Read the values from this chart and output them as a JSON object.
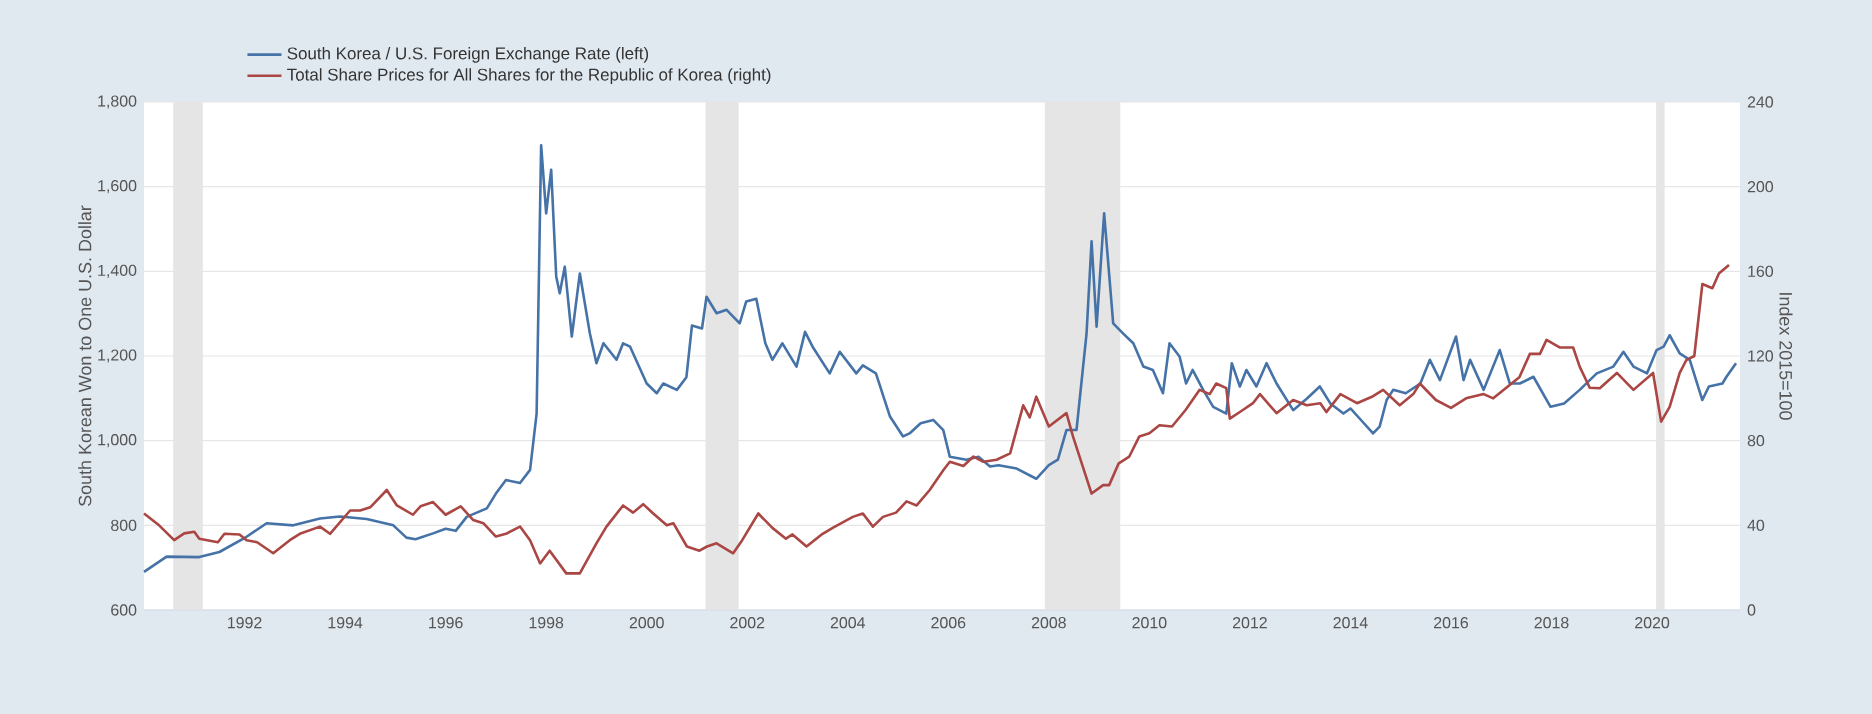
{
  "chart_data": {
    "type": "line",
    "ylabel": "South Korean Won to One U.S. Dollar",
    "y2label": "Index 2015=100",
    "xlim": [
      1990,
      2021.75
    ],
    "xticks": [
      1992,
      1994,
      1996,
      1998,
      2000,
      2002,
      2004,
      2006,
      2008,
      2010,
      2012,
      2014,
      2016,
      2018,
      2020
    ],
    "ylim": [
      600,
      1800
    ],
    "yticks": [
      600,
      800,
      {
        "value": 1000,
        "label": "1,000"
      },
      {
        "value": 1200,
        "label": "1,200"
      },
      {
        "value": 1400,
        "label": "1,400"
      },
      {
        "value": 1600,
        "label": "1,600"
      },
      {
        "value": 1800,
        "label": "1,800"
      }
    ],
    "y2lim": [
      0,
      240
    ],
    "y2ticks": [
      0,
      40,
      80,
      120,
      160,
      200,
      240
    ],
    "grid": "y",
    "legend": "top left",
    "bands": [
      {
        "axis": "x",
        "from": 1990.58,
        "to": 1991.17,
        "color": "#e5e5e5"
      },
      {
        "axis": "x",
        "from": 2001.17,
        "to": 2001.83,
        "color": "#e5e5e5"
      },
      {
        "axis": "x",
        "from": 2007.92,
        "to": 2009.42,
        "color": "#e5e5e5"
      },
      {
        "axis": "x",
        "from": 2020.08,
        "to": 2020.25,
        "color": "#e5e5e5"
      }
    ],
    "series": [
      {
        "name": "South Korea / U.S. Foreign Exchange Rate (left)",
        "color": "#4572a7",
        "x": [
          1990.0,
          1990.45,
          1991.1,
          1991.5,
          1992.04,
          1992.44,
          1992.97,
          1993.5,
          1993.9,
          1994.43,
          1994.96,
          1995.22,
          1995.4,
          1995.75,
          1996.0,
          1996.2,
          1996.42,
          1996.82,
          1997.0,
          1997.2,
          1997.48,
          1997.68,
          1997.81,
          1997.9,
          1998.0,
          1998.1,
          1998.2,
          1998.27,
          1998.37,
          1998.51,
          1998.67,
          1998.87,
          1999.0,
          1999.14,
          1999.4,
          1999.53,
          1999.67,
          2000.0,
          2000.2,
          2000.33,
          2000.6,
          2000.79,
          2000.9,
          2001.1,
          2001.19,
          2001.39,
          2001.59,
          2001.85,
          2001.98,
          2002.18,
          2002.36,
          2002.5,
          2002.7,
          2002.98,
          2003.15,
          2003.3,
          2003.64,
          2003.84,
          2004.17,
          2004.3,
          2004.56,
          2004.84,
          2005.1,
          2005.24,
          2005.45,
          2005.7,
          2005.9,
          2006.03,
          2006.36,
          2006.6,
          2006.83,
          2007.0,
          2007.36,
          2007.75,
          2008.0,
          2008.18,
          2008.35,
          2008.55,
          2008.75,
          2008.85,
          2008.95,
          2009.1,
          2009.28,
          2009.48,
          2009.68,
          2009.88,
          2010.07,
          2010.27,
          2010.4,
          2010.6,
          2010.73,
          2010.86,
          2011.07,
          2011.27,
          2011.53,
          2011.64,
          2011.8,
          2011.93,
          2012.13,
          2012.33,
          2012.53,
          2012.86,
          2013.13,
          2013.39,
          2013.6,
          2013.86,
          2014.0,
          2014.2,
          2014.45,
          2014.58,
          2014.72,
          2014.85,
          2015.1,
          2015.39,
          2015.58,
          2015.78,
          2016.1,
          2016.25,
          2016.38,
          2016.65,
          2016.97,
          2017.17,
          2017.37,
          2017.64,
          2017.98,
          2018.25,
          2018.56,
          2018.9,
          2019.23,
          2019.43,
          2019.63,
          2019.9,
          2020.09,
          2020.23,
          2020.35,
          2020.55,
          2020.75,
          2021.0,
          2021.13,
          2021.4,
          2021.48,
          2021.67
        ],
        "values": [
          690,
          726,
          725,
          737,
          773,
          805,
          800,
          816,
          821,
          815,
          800,
          771,
          767,
          781,
          792,
          787,
          820,
          840,
          875,
          907,
          900,
          931,
          1064,
          1698,
          1537,
          1640,
          1388,
          1348,
          1411,
          1246,
          1395,
          1253,
          1183,
          1230,
          1191,
          1230,
          1222,
          1135,
          1112,
          1135,
          1120,
          1150,
          1272,
          1265,
          1340,
          1301,
          1309,
          1277,
          1329,
          1335,
          1230,
          1191,
          1230,
          1175,
          1257,
          1222,
          1159,
          1210,
          1159,
          1178,
          1159,
          1057,
          1010,
          1018,
          1041,
          1049,
          1025,
          962,
          955,
          962,
          939,
          942,
          934,
          910,
          942,
          955,
          1025,
          1025,
          1253,
          1471,
          1269,
          1537,
          1277,
          1253,
          1230,
          1175,
          1167,
          1112,
          1230,
          1199,
          1135,
          1167,
          1120,
          1080,
          1064,
          1183,
          1128,
          1167,
          1128,
          1183,
          1135,
          1072,
          1099,
          1128,
          1088,
          1064,
          1076,
          1050,
          1017,
          1033,
          1096,
          1120,
          1112,
          1135,
          1191,
          1143,
          1246,
          1143,
          1191,
          1120,
          1214,
          1135,
          1135,
          1151,
          1080,
          1088,
          1120,
          1159,
          1175,
          1210,
          1175,
          1159,
          1214,
          1222,
          1249,
          1206,
          1191,
          1096,
          1128,
          1135,
          1151,
          1183
        ]
      },
      {
        "name": "Total Share Prices for All Shares for the Republic of Korea (right)",
        "color": "#aa4643",
        "axis": "y2",
        "x": [
          1990.0,
          1990.3,
          1990.6,
          1990.8,
          1991.0,
          1991.1,
          1991.47,
          1991.6,
          1991.9,
          1992.04,
          1992.25,
          1992.57,
          1992.9,
          1993.1,
          1993.5,
          1993.7,
          1994.1,
          1994.3,
          1994.5,
          1994.83,
          1995.03,
          1995.35,
          1995.5,
          1995.75,
          1996.0,
          1996.3,
          1996.55,
          1996.75,
          1997.0,
          1997.2,
          1997.48,
          1997.68,
          1997.88,
          1998.07,
          1998.4,
          1998.67,
          1999.0,
          1999.2,
          1999.53,
          1999.73,
          1999.93,
          2000.13,
          2000.4,
          2000.53,
          2000.8,
          2001.05,
          2001.2,
          2001.39,
          2001.72,
          2001.9,
          2002.22,
          2002.5,
          2002.77,
          2002.9,
          2003.18,
          2003.5,
          2003.7,
          2004.1,
          2004.3,
          2004.5,
          2004.7,
          2004.96,
          2005.17,
          2005.37,
          2005.63,
          2005.9,
          2006.03,
          2006.3,
          2006.5,
          2006.7,
          2006.96,
          2007.23,
          2007.49,
          2007.62,
          2007.75,
          2008.0,
          2008.35,
          2008.48,
          2008.85,
          2009.08,
          2009.2,
          2009.39,
          2009.6,
          2009.8,
          2010.0,
          2010.2,
          2010.45,
          2010.72,
          2011.0,
          2011.2,
          2011.33,
          2011.53,
          2011.6,
          2011.86,
          2012.06,
          2012.2,
          2012.53,
          2012.86,
          2013.13,
          2013.4,
          2013.52,
          2013.8,
          2014.13,
          2014.45,
          2014.65,
          2014.98,
          2015.25,
          2015.38,
          2015.7,
          2016.0,
          2016.3,
          2016.65,
          2016.84,
          2017.36,
          2017.57,
          2017.77,
          2017.9,
          2018.17,
          2018.43,
          2018.56,
          2018.76,
          2018.96,
          2019.3,
          2019.63,
          2020.02,
          2020.18,
          2020.35,
          2020.55,
          2020.68,
          2020.84,
          2021.0,
          2021.2,
          2021.33,
          2021.53
        ],
        "values": [
          45.6,
          40,
          33,
          36.2,
          37,
          33.7,
          32,
          36,
          35.7,
          33,
          32,
          26.8,
          33,
          36,
          39.4,
          36,
          47,
          47,
          48.5,
          56.7,
          49.4,
          45,
          49,
          51,
          45,
          49,
          42.5,
          41,
          34.7,
          36,
          39.4,
          33,
          22,
          28,
          17.3,
          17.3,
          31.5,
          39.4,
          49.4,
          46,
          50,
          45.6,
          40,
          41,
          30,
          28,
          30,
          31.5,
          26.8,
          33,
          45.6,
          38.8,
          33.7,
          35.7,
          30,
          36,
          38.8,
          44,
          45.6,
          39.4,
          44,
          46,
          51.3,
          49.4,
          56.7,
          66,
          70,
          68,
          72.5,
          70,
          71,
          74,
          96.7,
          91,
          100.8,
          86.7,
          93,
          82,
          55,
          59,
          59,
          69.3,
          72.5,
          82,
          83.5,
          87.3,
          86.7,
          94.5,
          104,
          102,
          107,
          104.8,
          90.4,
          94.5,
          97.7,
          102,
          93,
          99.2,
          96.7,
          97.7,
          93.5,
          102,
          97.7,
          101,
          104,
          96.7,
          102,
          107,
          99.2,
          95.5,
          100,
          102,
          100,
          110,
          121,
          121,
          127.6,
          124,
          124,
          115,
          105,
          104.8,
          112,
          104,
          112,
          89,
          96,
          112,
          118,
          120,
          154,
          152,
          159,
          163
        ]
      }
    ]
  }
}
